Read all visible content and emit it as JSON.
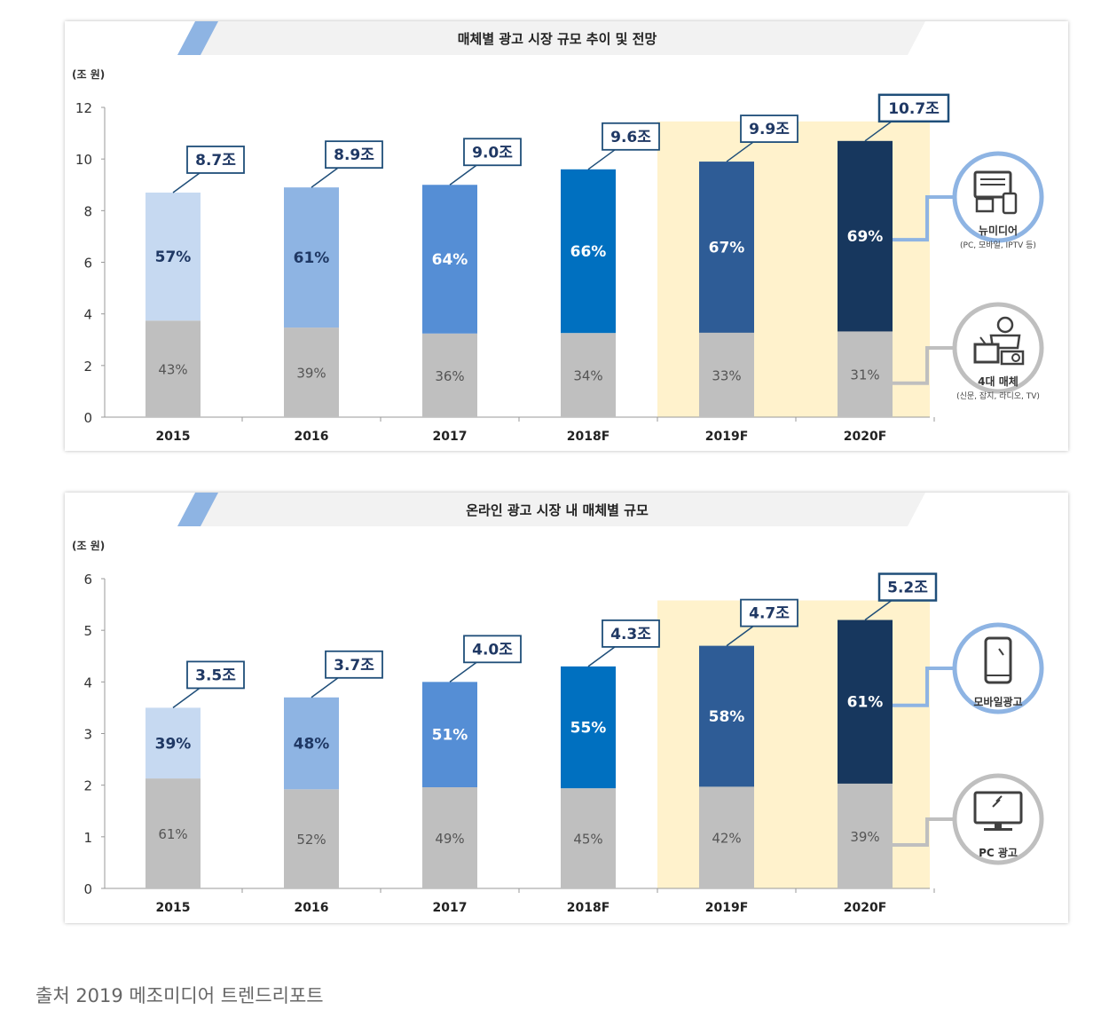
{
  "source_text": "출처 2019 메조미디어 트렌드리포트",
  "colors": {
    "total_bar_fills": [
      "#c6d9f1",
      "#8eb4e3",
      "#558ed5",
      "#0070c0",
      "#2e5c96",
      "#17375e"
    ],
    "gray_segment": "#bfbfbf",
    "forecast_highlight": "#fff2cc",
    "callout_border": "#1f4e79",
    "title_banner": "#f2f2f2",
    "banner_accent": "#8eb4e3"
  },
  "chart_data": [
    {
      "type": "bar",
      "stacked": true,
      "title": "매체별 광고 시장 규모 추이 및 전망",
      "ylabel": "(조 원)",
      "ylim": [
        0,
        12
      ],
      "yticks": [
        "0",
        "2",
        "4",
        "6",
        "8",
        "10",
        "12"
      ],
      "categories": [
        "2015",
        "2016",
        "2017",
        "2018F",
        "2019F",
        "2020F"
      ],
      "totals": [
        8.7,
        8.9,
        9.0,
        9.6,
        9.9,
        10.7
      ],
      "total_labels": [
        "8.7조",
        "8.9조",
        "9.0조",
        "9.6조",
        "9.9조",
        "10.7조"
      ],
      "forecast_highlight_from": 4,
      "series": [
        {
          "name": "4대 매체",
          "share_labels": [
            "43%",
            "39%",
            "36%",
            "34%",
            "33%",
            "31%"
          ],
          "values": [
            3.74,
            3.47,
            3.24,
            3.26,
            3.27,
            3.32
          ]
        },
        {
          "name": "뉴미디어",
          "share_labels": [
            "57%",
            "61%",
            "64%",
            "66%",
            "67%",
            "69%"
          ],
          "values": [
            4.96,
            5.43,
            5.76,
            6.34,
            6.63,
            7.38
          ]
        }
      ],
      "legend": [
        {
          "label": "뉴미디어",
          "sub": "(PC, 모바일, IPTV 등)",
          "icon": "devices-icon",
          "series": 1
        },
        {
          "label": "4대 매체",
          "sub": "(신문, 잡지, 라디오, TV)",
          "icon": "traditional-media-icon",
          "series": 0
        }
      ],
      "legend_position": "right"
    },
    {
      "type": "bar",
      "stacked": true,
      "title": "온라인 광고 시장 내 매체별 규모",
      "ylabel": "(조 원)",
      "ylim": [
        0,
        6
      ],
      "yticks": [
        "0",
        "1",
        "2",
        "3",
        "4",
        "5",
        "6"
      ],
      "categories": [
        "2015",
        "2016",
        "2017",
        "2018F",
        "2019F",
        "2020F"
      ],
      "totals": [
        3.5,
        3.7,
        4.0,
        4.3,
        4.7,
        5.2
      ],
      "total_labels": [
        "3.5조",
        "3.7조",
        "4.0조",
        "4.3조",
        "4.7조",
        "5.2조"
      ],
      "forecast_highlight_from": 4,
      "series": [
        {
          "name": "PC 광고",
          "share_labels": [
            "61%",
            "52%",
            "49%",
            "45%",
            "42%",
            "39%"
          ],
          "values": [
            2.13,
            1.92,
            1.96,
            1.94,
            1.97,
            2.03
          ]
        },
        {
          "name": "모바일광고",
          "share_labels": [
            "39%",
            "48%",
            "51%",
            "55%",
            "58%",
            "61%"
          ],
          "values": [
            1.37,
            1.78,
            2.04,
            2.36,
            2.73,
            3.17
          ]
        }
      ],
      "legend": [
        {
          "label": "모바일광고",
          "sub": "",
          "icon": "smartphone-icon",
          "series": 1
        },
        {
          "label": "PC 광고",
          "sub": "",
          "icon": "monitor-icon",
          "series": 0
        }
      ],
      "legend_position": "right"
    }
  ]
}
